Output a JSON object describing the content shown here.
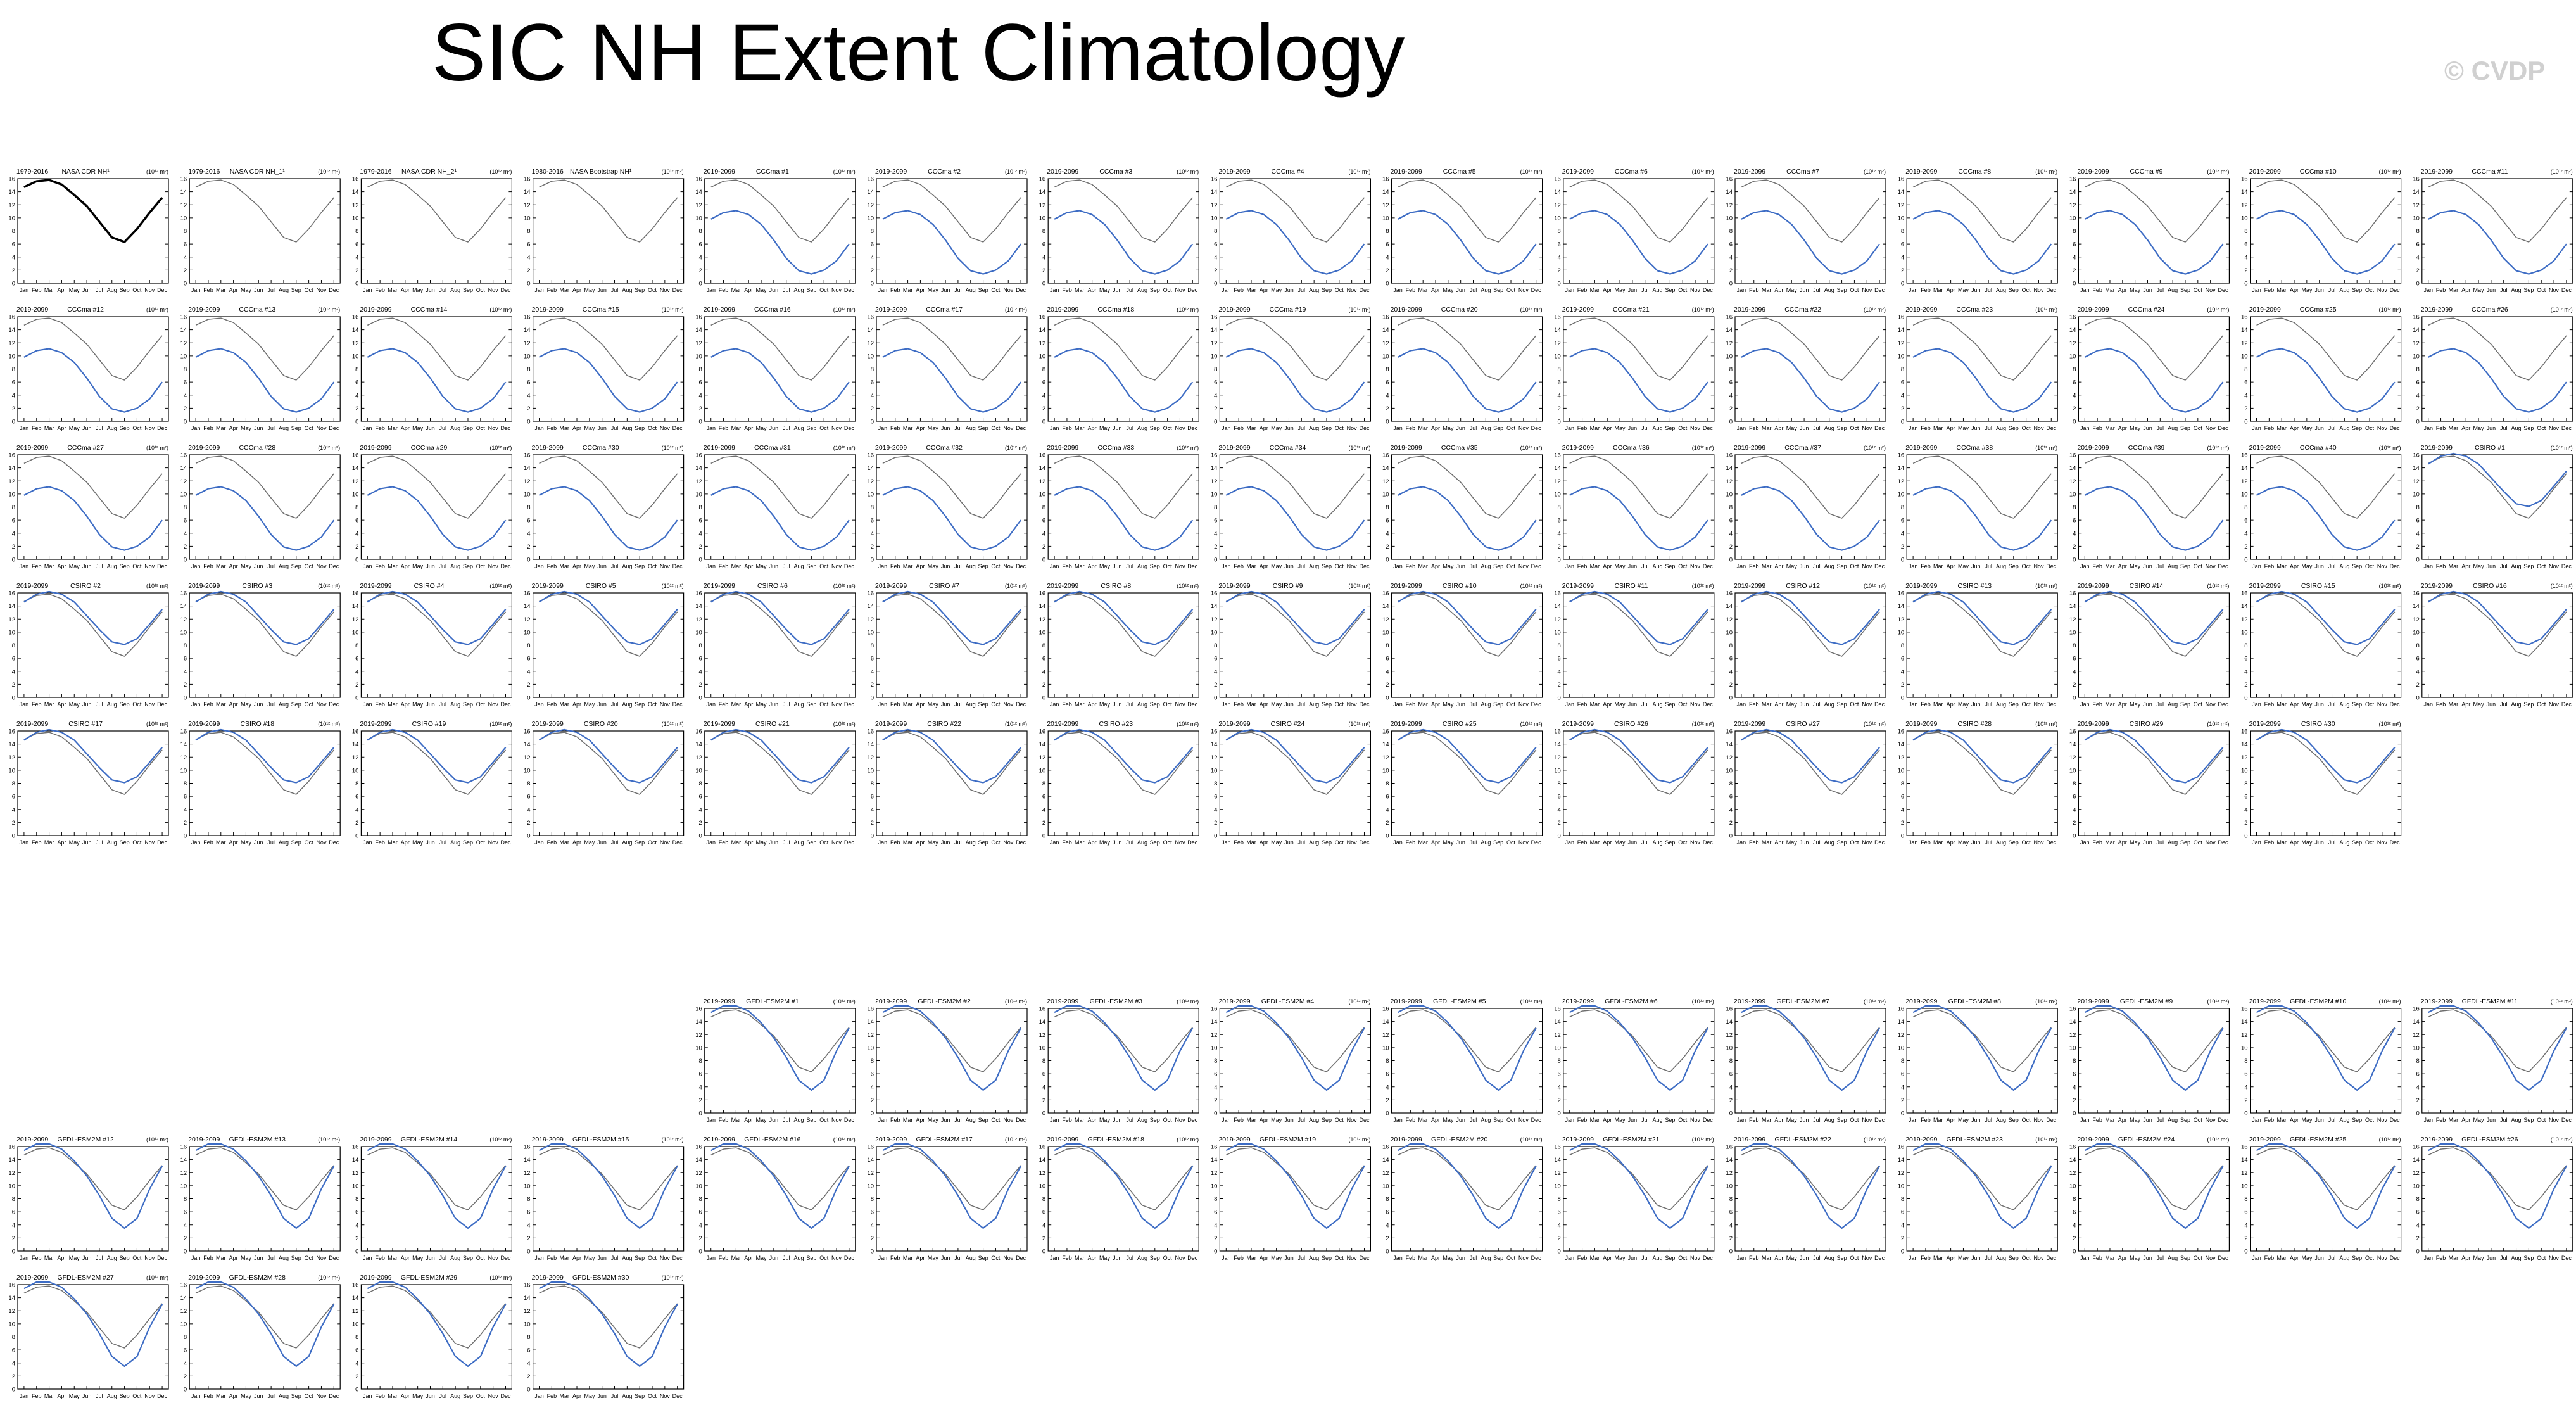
{
  "title": "SIC NH Extent Climatology",
  "watermark": "© CVDP",
  "units_label": "(10¹² m²)",
  "colors": {
    "observation": "#000000",
    "reference": "#6e6e6e",
    "model": "#3d6cc4"
  },
  "panel_data": {
    "months": [
      "Jan",
      "Feb",
      "Mar",
      "Apr",
      "May",
      "Jun",
      "Jul",
      "Aug",
      "Sep",
      "Oct",
      "Nov",
      "Dec"
    ],
    "yticks": [
      0,
      2,
      4,
      6,
      8,
      10,
      12,
      14,
      16
    ],
    "ylim": [
      0,
      16
    ]
  },
  "chart_data": {
    "type": "line",
    "categories": [
      "Jan",
      "Feb",
      "Mar",
      "Apr",
      "May",
      "Jun",
      "Jul",
      "Aug",
      "Sep",
      "Oct",
      "Nov",
      "Dec"
    ],
    "ylim": [
      0,
      16
    ],
    "observations": [
      {
        "period": "1979-2016",
        "name": "NASA CDR NH¹",
        "values": [
          14.7,
          15.6,
          15.8,
          15.1,
          13.5,
          11.8,
          9.4,
          7.0,
          6.3,
          8.3,
          10.8,
          13.1
        ]
      },
      {
        "period": "1979-2016",
        "name": "NASA CDR NH_1¹",
        "values": [
          14.7,
          15.6,
          15.8,
          15.1,
          13.5,
          11.8,
          9.4,
          7.0,
          6.3,
          8.3,
          10.8,
          13.1
        ]
      },
      {
        "period": "1979-2016",
        "name": "NASA CDR NH_2¹",
        "values": [
          14.7,
          15.6,
          15.8,
          15.1,
          13.5,
          11.8,
          9.4,
          7.0,
          6.3,
          8.3,
          10.8,
          13.1
        ]
      },
      {
        "period": "1980-2016",
        "name": "NASA Bootstrap NH¹",
        "values": [
          14.7,
          15.6,
          15.8,
          15.1,
          13.5,
          11.8,
          9.4,
          7.0,
          6.3,
          8.3,
          10.8,
          13.1
        ]
      }
    ],
    "model_climatologies": {
      "CCCma": [
        9.8,
        10.8,
        11.1,
        10.5,
        9.0,
        6.6,
        3.8,
        1.9,
        1.4,
        2.0,
        3.4,
        6.0
      ],
      "CSIRO": [
        14.6,
        15.8,
        16.2,
        15.8,
        14.6,
        12.5,
        10.4,
        8.5,
        8.1,
        9.0,
        11.2,
        13.5
      ],
      "GFDL-ESM2M": [
        15.4,
        16.4,
        16.4,
        15.6,
        13.8,
        11.5,
        8.5,
        5.0,
        3.5,
        5.0,
        9.5,
        13.0
      ]
    },
    "model_period": "2019-2099",
    "groups": [
      {
        "model": "CCCma",
        "count": 40
      },
      {
        "model": "CSIRO",
        "count": 30
      },
      {
        "model": "GFDL-ESM2M",
        "count": 30
      }
    ]
  }
}
